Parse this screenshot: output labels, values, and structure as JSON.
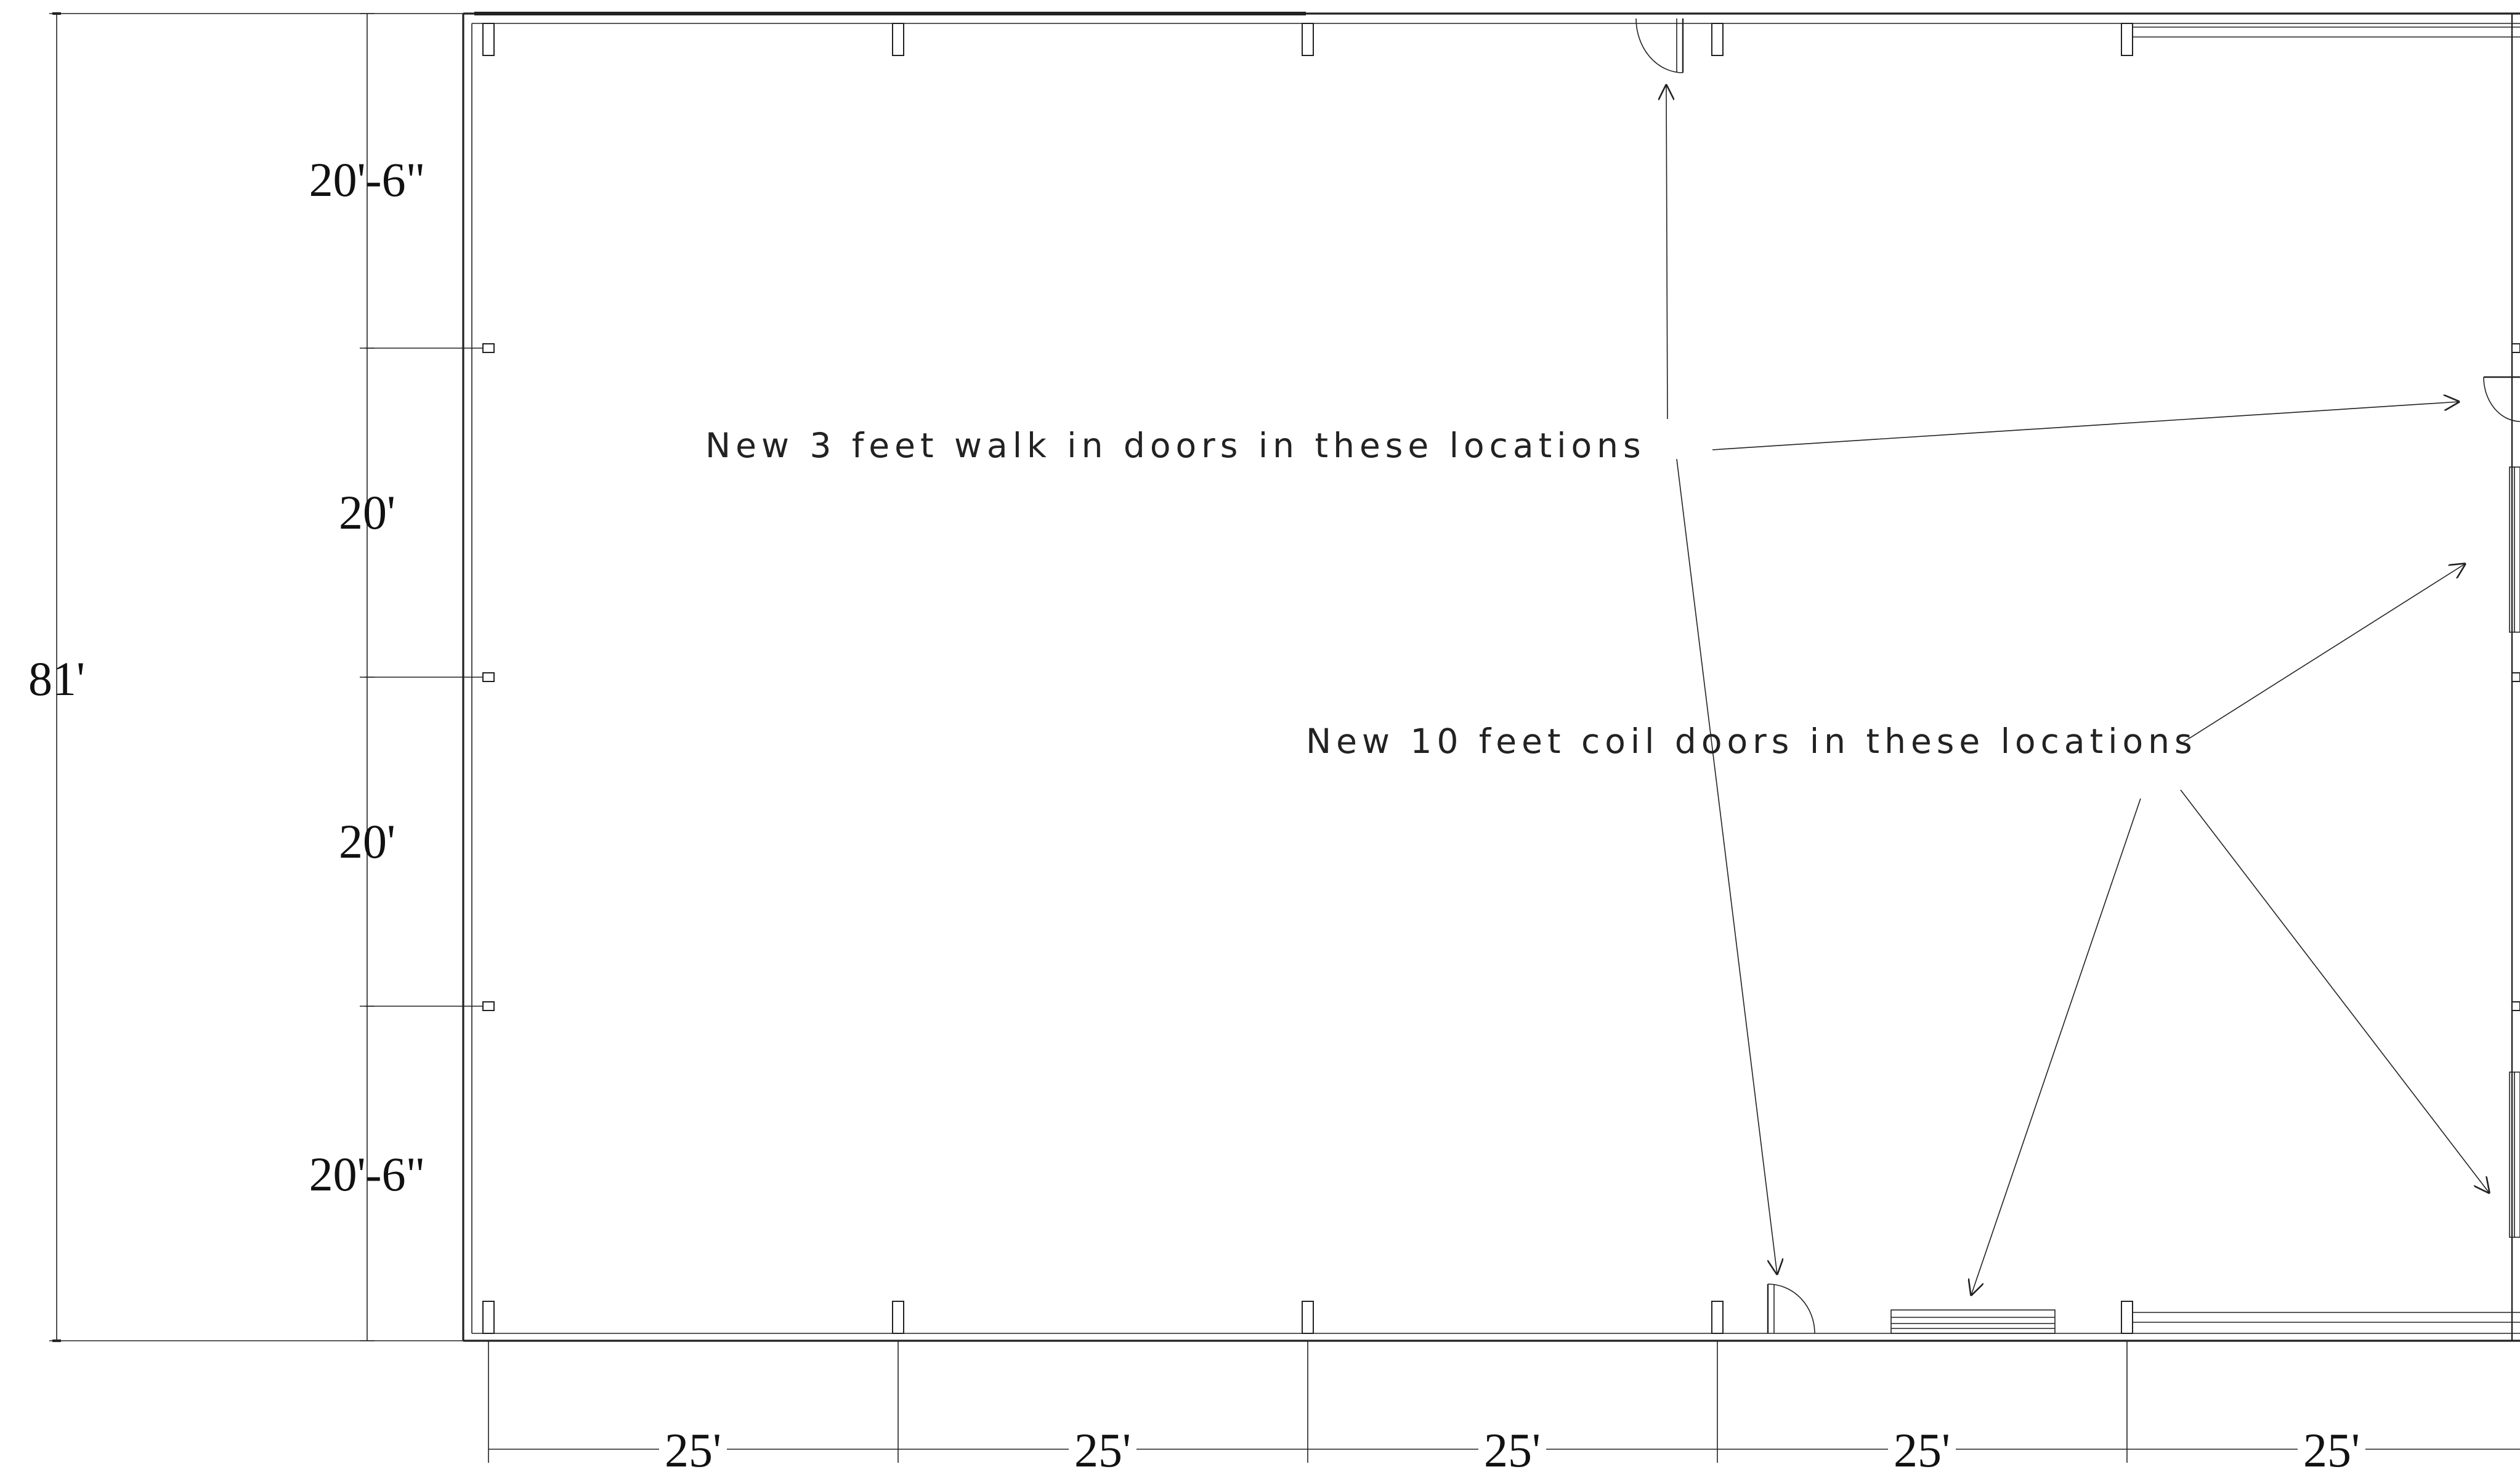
{
  "dimensions": {
    "overall_height": "81'",
    "bays_left": [
      "20'-6\"",
      "20'",
      "20'",
      "20'-6\""
    ],
    "bays_bottom": [
      "25'",
      "25'",
      "25'",
      "25'",
      "25'"
    ]
  },
  "notes": {
    "walk_in_doors": "New 3 feet walk in doors in these locations",
    "coil_doors": "New 10 feet coil doors in these locations"
  },
  "colors": {
    "line": "#222222",
    "background": "#ffffff"
  }
}
